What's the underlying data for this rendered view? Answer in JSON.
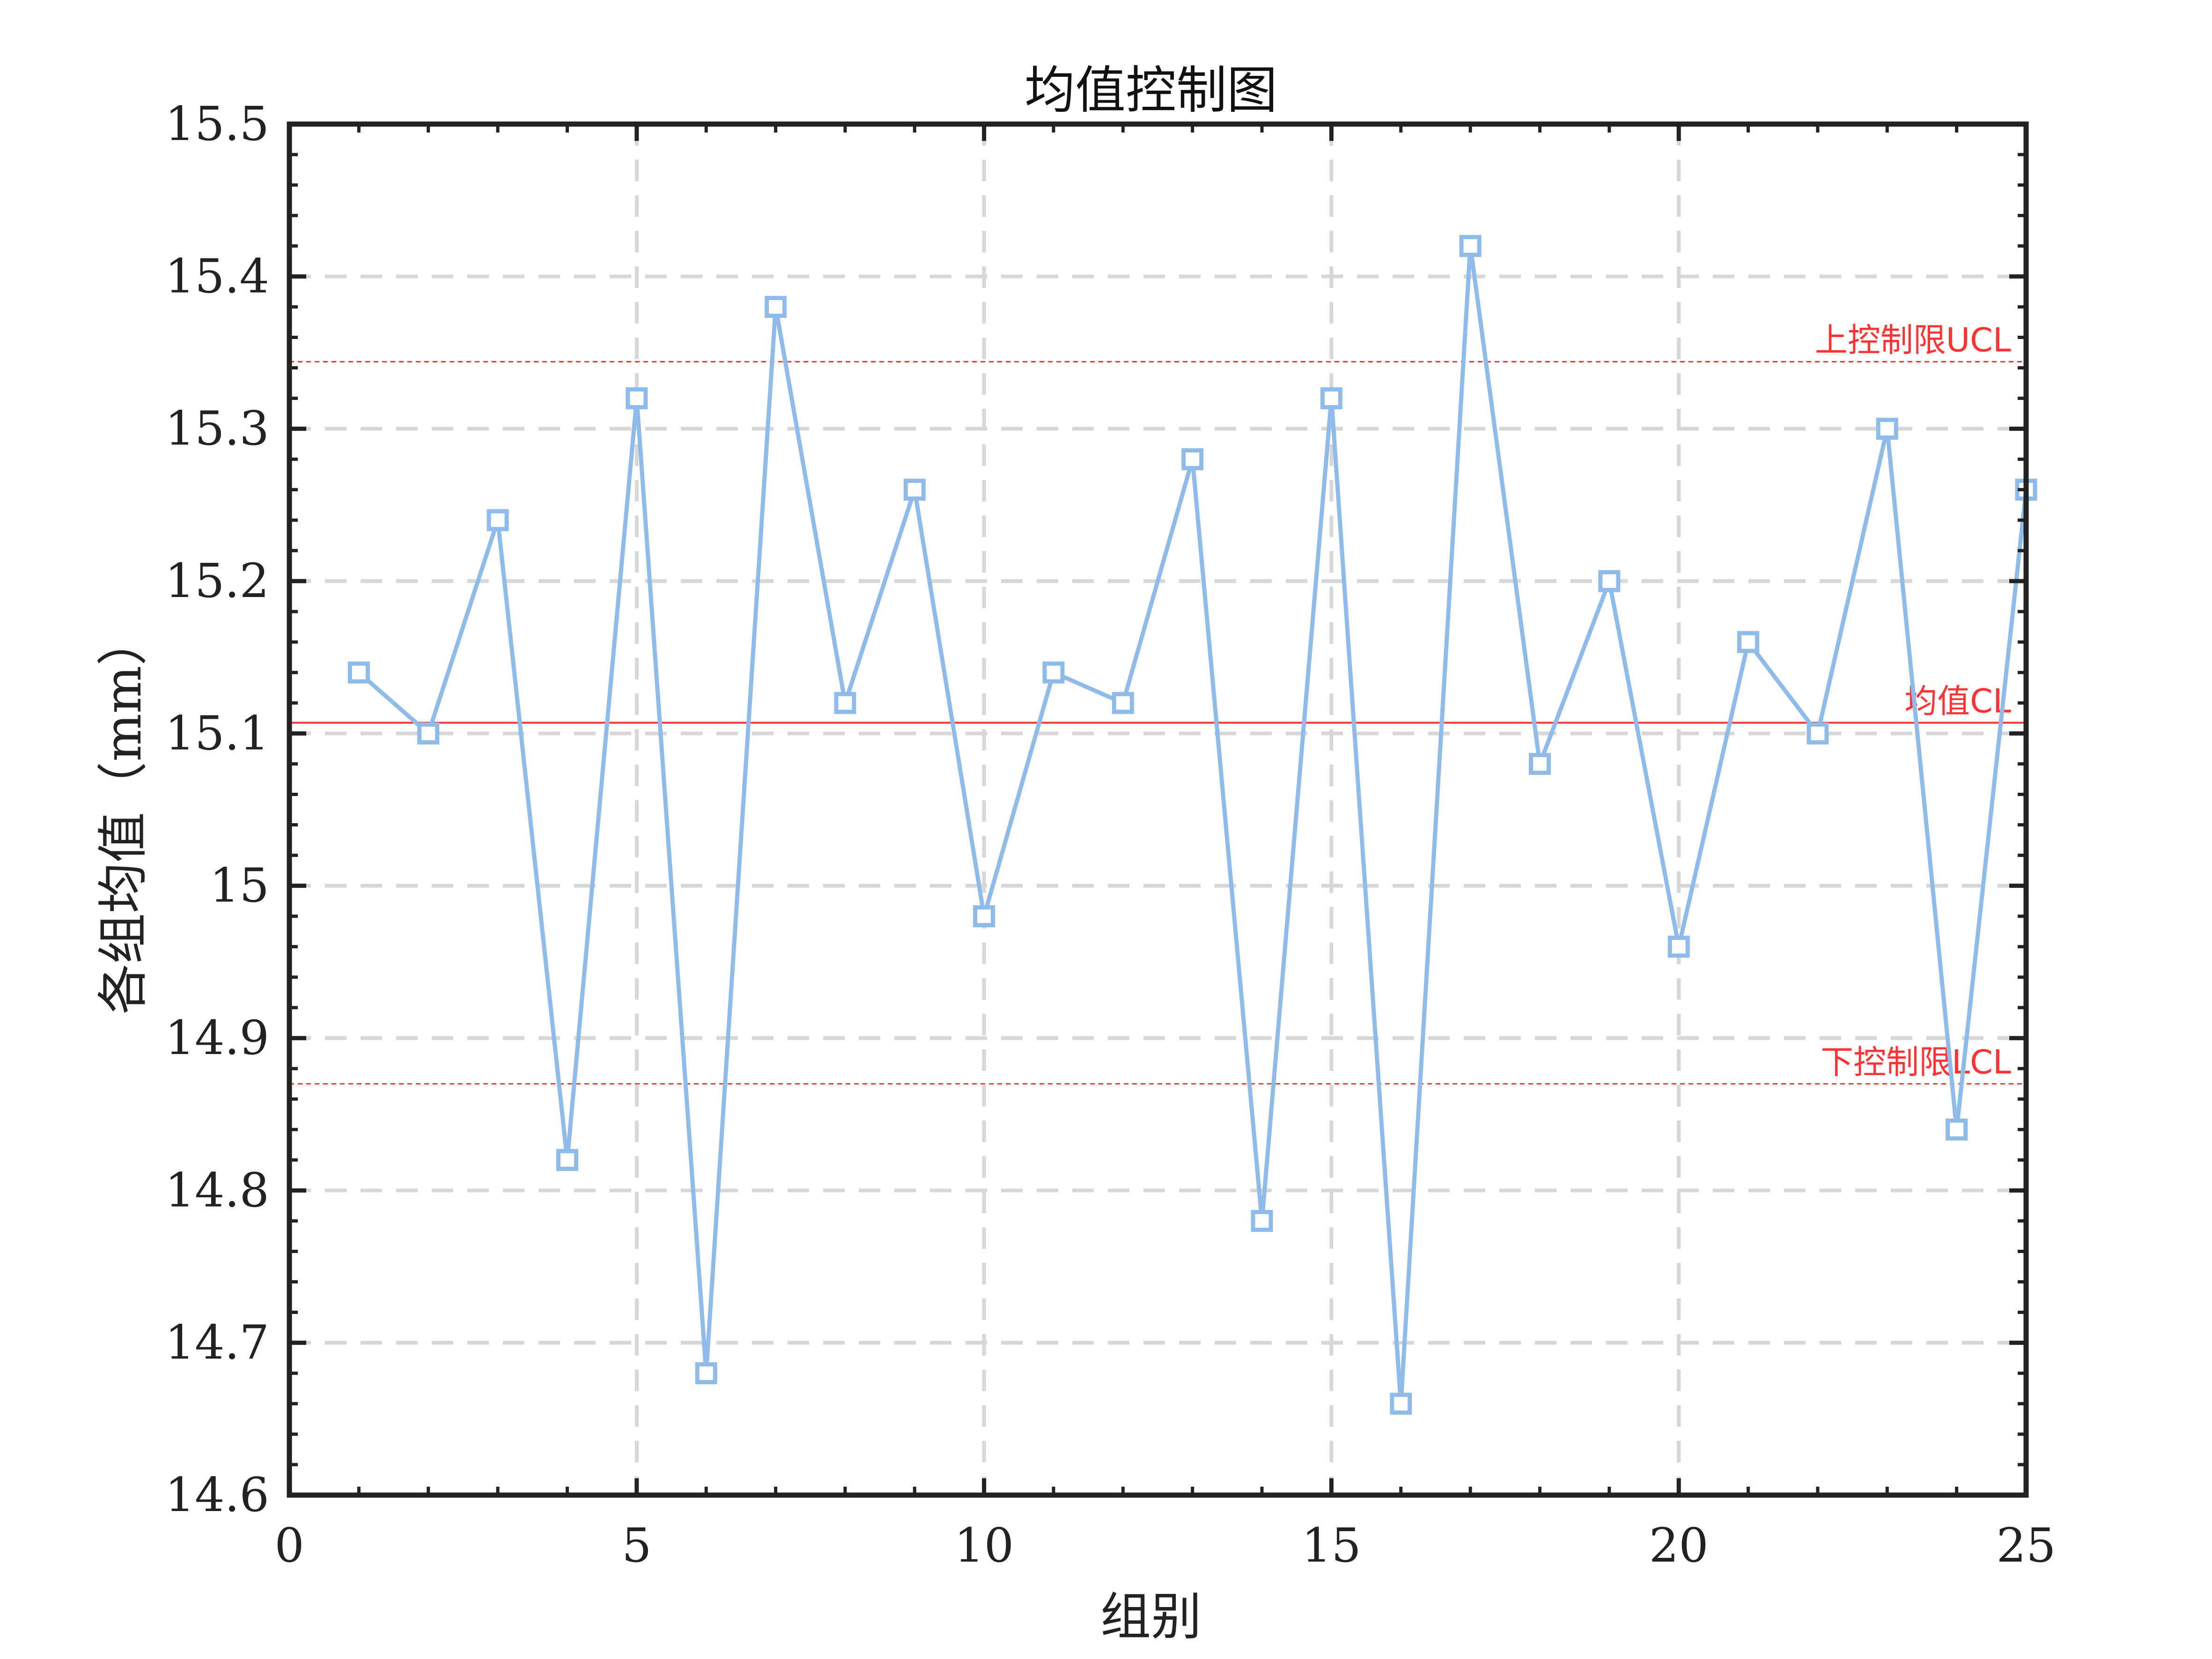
{
  "chart_data": {
    "type": "line",
    "title": "均值控制图",
    "xlabel": "组别",
    "ylabel": "各组均值（mm）",
    "xlim": [
      0,
      25
    ],
    "ylim": [
      14.6,
      15.5
    ],
    "xticks": [
      0,
      5,
      10,
      15,
      20,
      25
    ],
    "xtick_labels": [
      "0",
      "5",
      "10",
      "15",
      "20",
      "25"
    ],
    "yticks": [
      14.6,
      14.7,
      14.8,
      14.9,
      15.0,
      15.1,
      15.2,
      15.3,
      15.4,
      15.5
    ],
    "ytick_labels": [
      "14.6",
      "14.7",
      "14.8",
      "14.9",
      "15",
      "15.1",
      "15.2",
      "15.3",
      "15.4",
      "15.5"
    ],
    "grid": true,
    "series": [
      {
        "color": "#8fbbea",
        "marker": "square",
        "x": [
          1,
          2,
          3,
          4,
          5,
          6,
          7,
          8,
          9,
          10,
          11,
          12,
          13,
          14,
          15,
          16,
          17,
          18,
          19,
          20,
          21,
          22,
          23,
          24,
          25
        ],
        "values": [
          15.14,
          15.1,
          15.24,
          14.82,
          15.32,
          14.68,
          15.38,
          15.12,
          15.26,
          14.98,
          15.14,
          15.12,
          15.28,
          14.78,
          15.32,
          14.66,
          15.42,
          15.08,
          15.2,
          14.96,
          15.16,
          15.1,
          15.3,
          14.84,
          15.26
        ]
      }
    ],
    "reference_lines": [
      {
        "label": "上控制限UCL",
        "value": 15.344,
        "style": "dotted",
        "color": "#ff3333"
      },
      {
        "label": "均值CL",
        "value": 15.107,
        "style": "solid",
        "color": "#ff3333"
      },
      {
        "label": "下控制限LCL",
        "value": 14.87,
        "style": "dotted",
        "color": "#ff3333"
      }
    ]
  }
}
